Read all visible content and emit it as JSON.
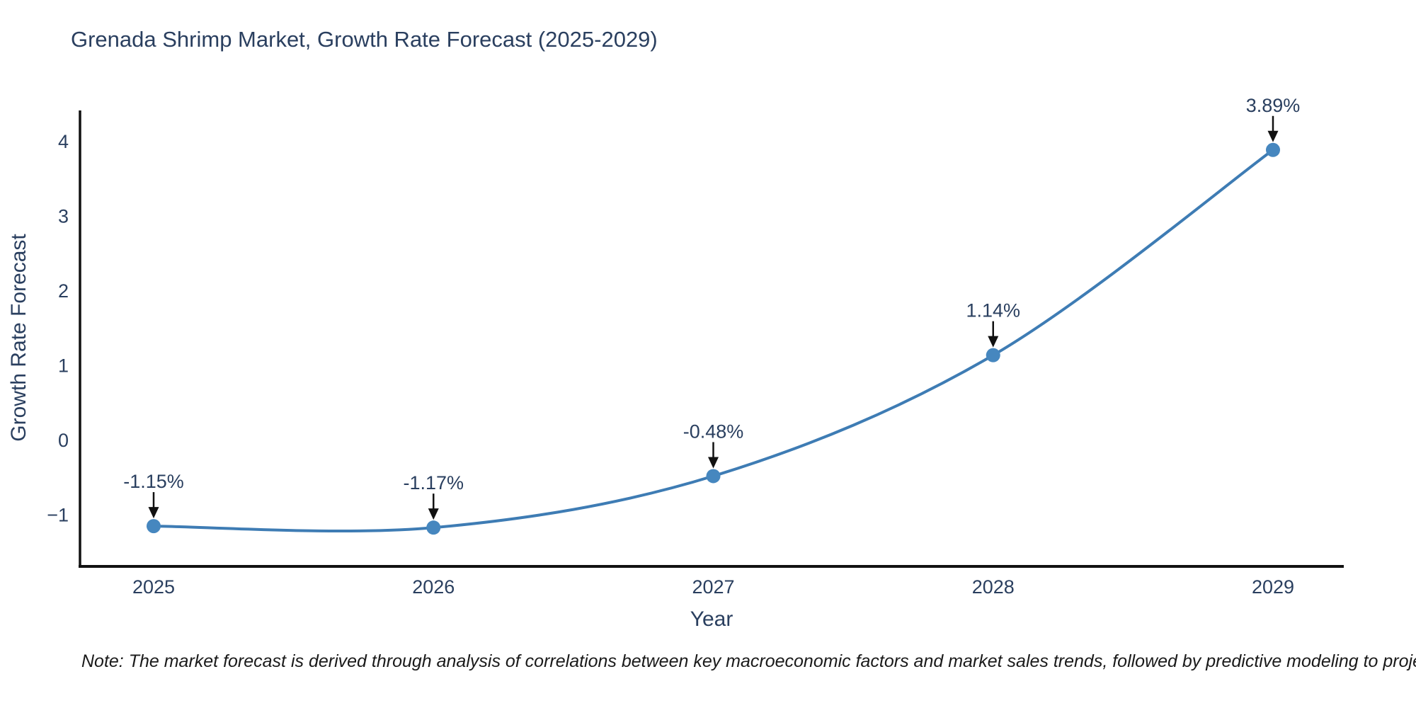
{
  "title": "Grenada Shrimp Market, Growth Rate Forecast (2025-2029)",
  "note": "Note: The market forecast is derived through analysis of correlations between key macroeconomic factors and market sales trends, followed by predictive modeling to project future sales",
  "chart_data": {
    "type": "line",
    "title": "Grenada Shrimp Market, Growth Rate Forecast (2025-2029)",
    "x": [
      2025,
      2026,
      2027,
      2028,
      2029
    ],
    "series": [
      {
        "name": "Growth Rate Forecast",
        "values": [
          -1.15,
          -1.17,
          -0.48,
          1.14,
          3.89
        ],
        "point_labels": [
          "-1.15%",
          "-1.17%",
          "-0.48%",
          "1.14%",
          "3.89%"
        ]
      }
    ],
    "xlabel": "Year",
    "ylabel": "Growth Rate Forecast",
    "yticks": [
      4,
      3,
      2,
      1,
      0,
      -1
    ],
    "ylim": [
      -1.69,
      4.4
    ],
    "grid": false,
    "legend": "none",
    "line_shape": "spline",
    "annotations_have_arrows": true,
    "colors": {
      "line": "#3E7CB4",
      "marker": "#4687BF",
      "axis": "#111111",
      "tick_text": "#2a3f5f",
      "annotation_text": "#2a3f5f",
      "annotation_arrow": "#111111",
      "title_text": "#2a3f5f",
      "background": "#ffffff"
    }
  }
}
